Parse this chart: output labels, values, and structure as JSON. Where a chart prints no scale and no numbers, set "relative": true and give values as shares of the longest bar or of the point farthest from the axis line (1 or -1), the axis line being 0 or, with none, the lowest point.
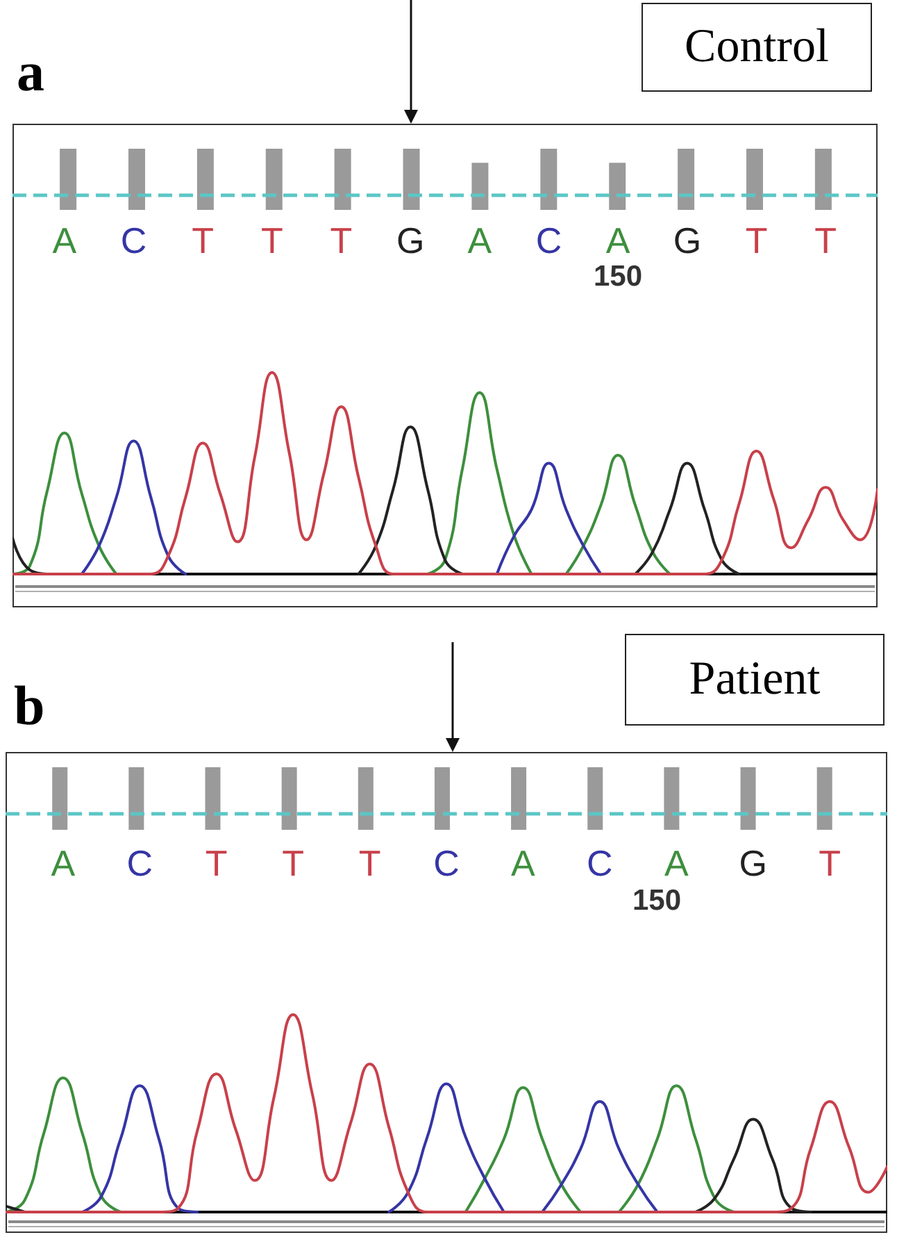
{
  "chart_data": [
    {
      "type": "bar",
      "title": "a",
      "subtitle": "Control",
      "relative": true,
      "tick_labels": false,
      "color": "#9a9a9a",
      "categories": [
        null,
        null,
        null,
        null,
        null,
        null,
        null,
        null,
        null,
        null,
        null,
        null
      ],
      "values": [
        1,
        1,
        1,
        1,
        1,
        1,
        0.77,
        1,
        0.77,
        1,
        1,
        1
      ],
      "ref_lines": [
        {
          "axis": "y",
          "value": 0.25,
          "color": "#5cc6c6",
          "line_style": "dashed"
        }
      ]
    },
    {
      "type": "line",
      "relative": true,
      "tick_labels": "x",
      "annotations": [
        "150"
      ],
      "categories": [
        null,
        null,
        null,
        "A",
        null,
        null,
        null,
        "C",
        null,
        null,
        null,
        "T",
        null,
        null,
        null,
        "T",
        null,
        null,
        null,
        "T",
        null,
        null,
        null,
        "G",
        null,
        null,
        null,
        "A",
        null,
        null,
        null,
        "C",
        null,
        null,
        null,
        "A",
        null,
        null,
        null,
        "G",
        null,
        null,
        null,
        "T",
        null,
        null,
        null,
        "T",
        null,
        null,
        null
      ],
      "series": [
        {
          "color": "#3d8f3d",
          "values": [
            0,
            0.04,
            0.41,
            0.7,
            0.4,
            0.14,
            0,
            null,
            null,
            null,
            null,
            null,
            null,
            null,
            null,
            null,
            null,
            null,
            null,
            null,
            null,
            null,
            null,
            null,
            0,
            0.07,
            0.52,
            0.9,
            0.52,
            0.19,
            0,
            null,
            0,
            0.14,
            0.34,
            0.59,
            0.34,
            0.11,
            0,
            null,
            null,
            null,
            null,
            null,
            null,
            null,
            null,
            null,
            null,
            null,
            null
          ]
        },
        {
          "color": "#3535a5",
          "values": [
            null,
            null,
            null,
            null,
            0,
            0.14,
            0.38,
            0.66,
            0.38,
            0.09,
            0,
            null,
            null,
            null,
            null,
            null,
            null,
            null,
            null,
            null,
            null,
            null,
            null,
            null,
            null,
            null,
            null,
            null,
            0,
            0.19,
            0.32,
            0.55,
            0.32,
            0.14,
            0,
            null,
            null,
            null,
            null,
            null,
            null,
            null,
            null,
            null,
            null,
            null,
            null,
            null,
            null,
            null,
            null
          ]
        },
        {
          "color": "#222222",
          "values": [
            0.18,
            0.02,
            0,
            null,
            null,
            null,
            null,
            null,
            null,
            null,
            null,
            null,
            null,
            null,
            null,
            null,
            null,
            null,
            null,
            null,
            0,
            0.14,
            0.42,
            0.73,
            0.42,
            0.07,
            0,
            null,
            null,
            null,
            null,
            null,
            null,
            null,
            null,
            null,
            0,
            0.11,
            0.32,
            0.55,
            0.32,
            0.07,
            0,
            null,
            null,
            null,
            null,
            null,
            null,
            null,
            null
          ]
        },
        {
          "color": "#c8404a",
          "values": [
            0,
            0,
            0,
            0,
            0,
            0,
            0,
            0,
            0,
            0.09,
            0.38,
            0.65,
            0.4,
            0.16,
            0.58,
            1,
            0.6,
            0.17,
            0.5,
            0.83,
            0.48,
            0.14,
            0,
            0,
            0,
            0,
            0,
            0,
            0,
            0,
            0,
            0,
            0,
            0,
            0,
            0,
            0,
            0,
            0,
            0,
            0,
            0.07,
            0.35,
            0.61,
            0.37,
            0.13,
            0.27,
            0.43,
            0.27,
            0.17,
            0.42
          ]
        }
      ]
    },
    {
      "type": "bar",
      "title": "b",
      "subtitle": "Patient",
      "relative": true,
      "tick_labels": false,
      "color": "#9a9a9a",
      "categories": [
        null,
        null,
        null,
        null,
        null,
        null,
        null,
        null,
        null,
        null,
        null
      ],
      "values": [
        1,
        1,
        1,
        1,
        1,
        1,
        1,
        1,
        1,
        1,
        1
      ],
      "ref_lines": [
        {
          "axis": "y",
          "value": 0.27,
          "color": "#5cc6c6",
          "line_style": "dashed"
        }
      ]
    },
    {
      "type": "line",
      "relative": true,
      "tick_labels": "x",
      "annotations": [
        "150"
      ],
      "categories": [
        null,
        null,
        null,
        "A",
        null,
        null,
        null,
        "C",
        null,
        null,
        null,
        "T",
        null,
        null,
        null,
        "T",
        null,
        null,
        null,
        "T",
        null,
        null,
        null,
        "C",
        null,
        null,
        null,
        "A",
        null,
        null,
        null,
        "C",
        null,
        null,
        null,
        "A",
        null,
        null,
        null,
        "G",
        null,
        null,
        null,
        "T",
        null,
        null,
        null
      ],
      "series": [
        {
          "color": "#3d8f3d",
          "values": [
            0,
            0.06,
            0.4,
            0.68,
            0.4,
            0.08,
            0,
            null,
            null,
            null,
            null,
            null,
            null,
            null,
            null,
            null,
            null,
            null,
            null,
            null,
            null,
            null,
            null,
            null,
            0,
            0.17,
            0.37,
            0.63,
            0.37,
            0.14,
            0,
            null,
            0,
            0.14,
            0.37,
            0.64,
            0.37,
            0.07,
            0,
            null,
            null,
            null,
            null,
            null,
            null,
            null,
            null
          ]
        },
        {
          "color": "#3535a5",
          "values": [
            null,
            null,
            null,
            null,
            0,
            0.08,
            0.37,
            0.64,
            0.37,
            0.02,
            0,
            null,
            null,
            null,
            null,
            null,
            null,
            null,
            null,
            null,
            0,
            0.1,
            0.38,
            0.65,
            0.38,
            0.17,
            0,
            null,
            0,
            0.14,
            0.32,
            0.56,
            0.32,
            0.14,
            0,
            null,
            null,
            null,
            null,
            null,
            null,
            null,
            null,
            null,
            null,
            null,
            null
          ]
        },
        {
          "color": "#222222",
          "values": [
            0.03,
            0,
            null,
            null,
            null,
            null,
            null,
            null,
            null,
            null,
            null,
            null,
            null,
            null,
            null,
            null,
            null,
            null,
            null,
            null,
            null,
            null,
            null,
            null,
            null,
            null,
            null,
            null,
            null,
            null,
            null,
            null,
            null,
            null,
            null,
            null,
            0,
            0.07,
            0.27,
            0.47,
            0.27,
            0.02,
            0,
            null,
            null,
            null,
            null
          ]
        },
        {
          "color": "#c8404a",
          "values": [
            0,
            0,
            0,
            0,
            0,
            0,
            0,
            0,
            0,
            0.02,
            0.41,
            0.7,
            0.42,
            0.16,
            0.58,
            1,
            0.6,
            0.16,
            0.45,
            0.75,
            0.43,
            0.1,
            0,
            0,
            0,
            0,
            0,
            0,
            0,
            0,
            0,
            0,
            0,
            0,
            0,
            0,
            0,
            0,
            0,
            0,
            0,
            0.02,
            0.32,
            0.56,
            0.33,
            0.1,
            0.23
          ]
        }
      ]
    }
  ]
}
